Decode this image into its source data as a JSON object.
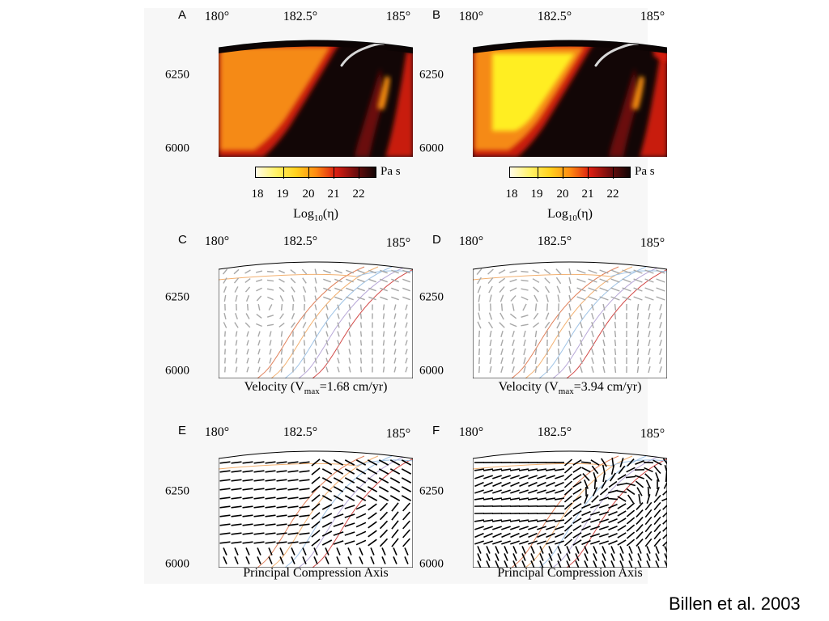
{
  "figure": {
    "panels": [
      {
        "id": "A",
        "letter": "A",
        "type": "viscosity",
        "yellow": false
      },
      {
        "id": "B",
        "letter": "B",
        "type": "viscosity",
        "yellow": true
      },
      {
        "id": "C",
        "letter": "C",
        "type": "velocity",
        "caption_pre": "Velocity (V",
        "caption_sub": "max",
        "caption_post": "=1.68 cm/yr)"
      },
      {
        "id": "D",
        "letter": "D",
        "type": "velocity",
        "caption_pre": "Velocity (V",
        "caption_sub": "max",
        "caption_post": "=3.94 cm/yr)"
      },
      {
        "id": "E",
        "letter": "E",
        "type": "compression",
        "caption": "Principal Compression Axis"
      },
      {
        "id": "F",
        "letter": "F",
        "type": "compression",
        "caption": "Principal Compression Axis"
      }
    ],
    "longitude_ticks": [
      "180°",
      "182.5°",
      "185°"
    ],
    "depth_ticks": [
      "6250",
      "6000"
    ],
    "colorbar": {
      "unit": "Pa s",
      "tick_labels": [
        "18",
        "19",
        "20",
        "21",
        "22"
      ],
      "title_main": "Log",
      "title_sub": "10",
      "title_arg": "(η)",
      "colors": [
        "#fffbe8",
        "#fff36a",
        "#ffd21e",
        "#ff8c12",
        "#dc1e12",
        "#700d0d",
        "#120505"
      ]
    }
  },
  "credit": "Billen et al. 2003"
}
